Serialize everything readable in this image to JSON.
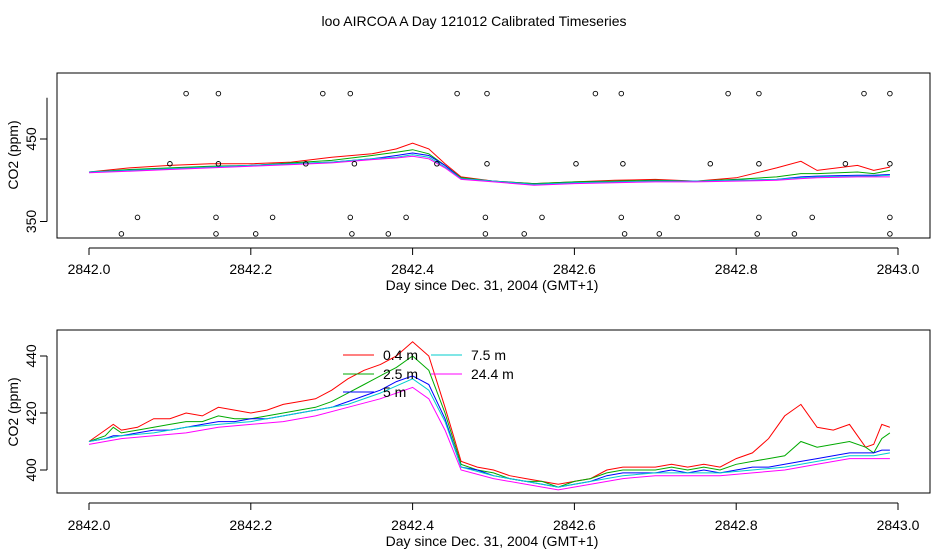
{
  "title": "loo AIRCOA A  Day 121012  Calibrated Timeseries",
  "chart_data": [
    {
      "type": "scatter",
      "xlabel": "Day since Dec. 31, 2004 (GMT+1)",
      "ylabel": "CO2 (ppm)",
      "xlim": [
        2842.0,
        2843.0
      ],
      "xticks": [
        "2842.0",
        "2842.2",
        "2842.4",
        "2842.6",
        "2842.8",
        "2843.0"
      ],
      "ylim": [
        330,
        530
      ],
      "yticks": [
        "350",
        "450"
      ],
      "grid": false,
      "series": [
        {
          "color": "#ff0000",
          "x": [
            2842.0,
            2842.05,
            2842.1,
            2842.15,
            2842.2,
            2842.25,
            2842.3,
            2842.35,
            2842.38,
            2842.4,
            2842.42,
            2842.44,
            2842.46,
            2842.5,
            2842.55,
            2842.6,
            2842.65,
            2842.7,
            2842.75,
            2842.8,
            2842.85,
            2842.88,
            2842.9,
            2842.95,
            2842.97,
            2842.99
          ],
          "y": [
            410,
            415,
            418,
            420,
            420,
            422,
            428,
            432,
            438,
            445,
            438,
            420,
            404,
            399,
            396,
            398,
            400,
            401,
            399,
            403,
            415,
            423,
            412,
            418,
            412,
            416
          ]
        },
        {
          "color": "#00aa00",
          "x": [
            2842.0,
            2842.05,
            2842.1,
            2842.15,
            2842.2,
            2842.25,
            2842.3,
            2842.35,
            2842.38,
            2842.4,
            2842.42,
            2842.44,
            2842.46,
            2842.5,
            2842.55,
            2842.6,
            2842.65,
            2842.7,
            2842.75,
            2842.8,
            2842.85,
            2842.88,
            2842.9,
            2842.95,
            2842.97,
            2842.99
          ],
          "y": [
            410,
            413,
            415,
            417,
            418,
            421,
            424,
            430,
            434,
            437,
            432,
            418,
            403,
            399,
            396,
            398,
            399,
            400,
            399,
            401,
            404,
            408,
            408,
            410,
            408,
            412
          ]
        },
        {
          "color": "#0000ff",
          "x": [
            2842.0,
            2842.05,
            2842.1,
            2842.15,
            2842.2,
            2842.25,
            2842.3,
            2842.35,
            2842.38,
            2842.4,
            2842.42,
            2842.44,
            2842.46,
            2842.5,
            2842.55,
            2842.6,
            2842.65,
            2842.7,
            2842.75,
            2842.8,
            2842.85,
            2842.88,
            2842.9,
            2842.95,
            2842.97,
            2842.99
          ],
          "y": [
            410,
            412,
            414,
            416,
            418,
            420,
            422,
            426,
            430,
            433,
            430,
            418,
            402,
            399,
            395,
            397,
            398,
            399,
            399,
            400,
            401,
            404,
            405,
            406,
            406,
            407
          ]
        },
        {
          "color": "#00cccc",
          "x": [
            2842.0,
            2842.05,
            2842.1,
            2842.15,
            2842.2,
            2842.25,
            2842.3,
            2842.35,
            2842.38,
            2842.4,
            2842.42,
            2842.44,
            2842.46,
            2842.5,
            2842.55,
            2842.6,
            2842.65,
            2842.7,
            2842.75,
            2842.8,
            2842.85,
            2842.88,
            2842.9,
            2842.95,
            2842.97,
            2842.99
          ],
          "y": [
            410,
            412,
            414,
            416,
            418,
            420,
            422,
            426,
            428,
            431,
            428,
            416,
            402,
            399,
            395,
            397,
            398,
            399,
            399,
            400,
            401,
            403,
            404,
            405,
            405,
            406
          ]
        },
        {
          "color": "#ff00ff",
          "x": [
            2842.0,
            2842.05,
            2842.1,
            2842.15,
            2842.2,
            2842.25,
            2842.3,
            2842.35,
            2842.38,
            2842.4,
            2842.42,
            2842.44,
            2842.46,
            2842.5,
            2842.55,
            2842.6,
            2842.65,
            2842.7,
            2842.75,
            2842.8,
            2842.85,
            2842.88,
            2842.9,
            2842.95,
            2842.97,
            2842.99
          ],
          "y": [
            409,
            411,
            413,
            415,
            417,
            419,
            421,
            425,
            427,
            429,
            426,
            415,
            401,
            398,
            394,
            396,
            397,
            398,
            398,
            399,
            400,
            402,
            403,
            404,
            404,
            404
          ]
        }
      ],
      "points": [
        {
          "x": 2842.04,
          "y": 335
        },
        {
          "x": 2842.06,
          "y": 355
        },
        {
          "x": 2842.1,
          "y": 420
        },
        {
          "x": 2842.12,
          "y": 505
        },
        {
          "x": 2842.157,
          "y": 335
        },
        {
          "x": 2842.157,
          "y": 355
        },
        {
          "x": 2842.16,
          "y": 420
        },
        {
          "x": 2842.16,
          "y": 505
        },
        {
          "x": 2842.206,
          "y": 335
        },
        {
          "x": 2842.227,
          "y": 355
        },
        {
          "x": 2842.268,
          "y": 420
        },
        {
          "x": 2842.289,
          "y": 505
        },
        {
          "x": 2842.323,
          "y": 355
        },
        {
          "x": 2842.323,
          "y": 505
        },
        {
          "x": 2842.325,
          "y": 335
        },
        {
          "x": 2842.328,
          "y": 420
        },
        {
          "x": 2842.37,
          "y": 335
        },
        {
          "x": 2842.392,
          "y": 355
        },
        {
          "x": 2842.43,
          "y": 420
        },
        {
          "x": 2842.455,
          "y": 505
        },
        {
          "x": 2842.49,
          "y": 335
        },
        {
          "x": 2842.49,
          "y": 355
        },
        {
          "x": 2842.492,
          "y": 420
        },
        {
          "x": 2842.492,
          "y": 505
        },
        {
          "x": 2842.538,
          "y": 335
        },
        {
          "x": 2842.56,
          "y": 355
        },
        {
          "x": 2842.602,
          "y": 420
        },
        {
          "x": 2842.626,
          "y": 505
        },
        {
          "x": 2842.658,
          "y": 355
        },
        {
          "x": 2842.658,
          "y": 505
        },
        {
          "x": 2842.66,
          "y": 420
        },
        {
          "x": 2842.662,
          "y": 335
        },
        {
          "x": 2842.705,
          "y": 335
        },
        {
          "x": 2842.727,
          "y": 355
        },
        {
          "x": 2842.768,
          "y": 420
        },
        {
          "x": 2842.79,
          "y": 505
        },
        {
          "x": 2842.826,
          "y": 335
        },
        {
          "x": 2842.828,
          "y": 355
        },
        {
          "x": 2842.828,
          "y": 420
        },
        {
          "x": 2842.828,
          "y": 505
        },
        {
          "x": 2842.872,
          "y": 335
        },
        {
          "x": 2842.894,
          "y": 355
        },
        {
          "x": 2842.935,
          "y": 420
        },
        {
          "x": 2842.958,
          "y": 505
        },
        {
          "x": 2842.99,
          "y": 335
        },
        {
          "x": 2842.99,
          "y": 355
        },
        {
          "x": 2842.99,
          "y": 420
        },
        {
          "x": 2842.99,
          "y": 505
        }
      ]
    },
    {
      "type": "line",
      "xlabel": "Day since Dec. 31, 2004 (GMT+1)",
      "ylabel": "CO2 (ppm)",
      "xlim": [
        2842.0,
        2843.0
      ],
      "xticks": [
        "2842.0",
        "2842.2",
        "2842.4",
        "2842.6",
        "2842.8",
        "2843.0"
      ],
      "ylim": [
        390,
        450
      ],
      "yticks": [
        "400",
        "420",
        "440"
      ],
      "grid": false,
      "legend": "top-center",
      "series": [
        {
          "name": "0.4 m",
          "color": "#ff0000",
          "x": [
            2842.0,
            2842.02,
            2842.03,
            2842.04,
            2842.06,
            2842.08,
            2842.1,
            2842.12,
            2842.14,
            2842.16,
            2842.18,
            2842.2,
            2842.22,
            2842.24,
            2842.26,
            2842.28,
            2842.3,
            2842.32,
            2842.34,
            2842.36,
            2842.38,
            2842.4,
            2842.42,
            2842.44,
            2842.46,
            2842.48,
            2842.5,
            2842.52,
            2842.54,
            2842.56,
            2842.58,
            2842.6,
            2842.62,
            2842.64,
            2842.66,
            2842.68,
            2842.7,
            2842.72,
            2842.74,
            2842.76,
            2842.78,
            2842.8,
            2842.82,
            2842.84,
            2842.86,
            2842.88,
            2842.9,
            2842.92,
            2842.94,
            2842.96,
            2842.97,
            2842.98,
            2842.99
          ],
          "y": [
            410,
            414,
            416,
            414,
            415,
            418,
            418,
            420,
            419,
            422,
            421,
            420,
            421,
            423,
            424,
            425,
            428,
            432,
            435,
            437,
            440,
            445,
            440,
            422,
            403,
            401,
            400,
            398,
            397,
            396,
            395,
            396,
            397,
            400,
            401,
            401,
            401,
            402,
            401,
            402,
            401,
            404,
            406,
            411,
            419,
            423,
            415,
            414,
            416,
            408,
            409,
            416,
            415
          ]
        },
        {
          "name": "2.5 m",
          "color": "#00aa00",
          "x": [
            2842.0,
            2842.02,
            2842.03,
            2842.04,
            2842.06,
            2842.08,
            2842.1,
            2842.12,
            2842.14,
            2842.16,
            2842.18,
            2842.2,
            2842.22,
            2842.24,
            2842.26,
            2842.28,
            2842.3,
            2842.32,
            2842.34,
            2842.36,
            2842.38,
            2842.4,
            2842.42,
            2842.44,
            2842.46,
            2842.48,
            2842.5,
            2842.52,
            2842.54,
            2842.56,
            2842.58,
            2842.6,
            2842.62,
            2842.64,
            2842.66,
            2842.68,
            2842.7,
            2842.72,
            2842.74,
            2842.76,
            2842.78,
            2842.8,
            2842.82,
            2842.84,
            2842.86,
            2842.88,
            2842.9,
            2842.92,
            2842.94,
            2842.96,
            2842.97,
            2842.98,
            2842.99
          ],
          "y": [
            410,
            412,
            415,
            413,
            414,
            415,
            416,
            417,
            417,
            419,
            418,
            418,
            419,
            420,
            421,
            422,
            424,
            427,
            430,
            433,
            436,
            440,
            435,
            420,
            402,
            400,
            399,
            397,
            396,
            396,
            394,
            396,
            397,
            399,
            400,
            400,
            400,
            401,
            400,
            401,
            400,
            402,
            403,
            404,
            405,
            410,
            408,
            409,
            410,
            408,
            406,
            411,
            413
          ]
        },
        {
          "name": "5 m",
          "color": "#0000ff",
          "x": [
            2842.0,
            2842.02,
            2842.03,
            2842.04,
            2842.06,
            2842.08,
            2842.1,
            2842.12,
            2842.14,
            2842.16,
            2842.18,
            2842.2,
            2842.22,
            2842.24,
            2842.26,
            2842.28,
            2842.3,
            2842.32,
            2842.34,
            2842.36,
            2842.38,
            2842.4,
            2842.42,
            2842.44,
            2842.46,
            2842.48,
            2842.5,
            2842.52,
            2842.54,
            2842.56,
            2842.58,
            2842.6,
            2842.62,
            2842.64,
            2842.66,
            2842.68,
            2842.7,
            2842.72,
            2842.74,
            2842.76,
            2842.78,
            2842.8,
            2842.82,
            2842.84,
            2842.86,
            2842.88,
            2842.9,
            2842.92,
            2842.94,
            2842.96,
            2842.97,
            2842.98,
            2842.99
          ],
          "y": [
            410,
            411,
            412,
            412,
            413,
            414,
            414,
            415,
            416,
            417,
            417,
            418,
            418,
            419,
            420,
            421,
            422,
            424,
            426,
            428,
            431,
            433,
            430,
            418,
            401,
            400,
            398,
            397,
            396,
            395,
            394,
            395,
            396,
            398,
            399,
            399,
            399,
            400,
            399,
            400,
            399,
            400,
            401,
            401,
            402,
            403,
            404,
            405,
            406,
            406,
            406,
            407,
            407
          ]
        },
        {
          "name": "7.5 m",
          "color": "#00cccc",
          "x": [
            2842.0,
            2842.04,
            2842.08,
            2842.12,
            2842.16,
            2842.2,
            2842.24,
            2842.28,
            2842.32,
            2842.36,
            2842.4,
            2842.42,
            2842.44,
            2842.46,
            2842.5,
            2842.54,
            2842.58,
            2842.62,
            2842.66,
            2842.7,
            2842.74,
            2842.78,
            2842.82,
            2842.86,
            2842.9,
            2842.94,
            2842.97,
            2842.99
          ],
          "y": [
            410,
            412,
            413,
            415,
            416,
            417,
            419,
            421,
            423,
            427,
            432,
            428,
            417,
            401,
            398,
            396,
            394,
            396,
            398,
            399,
            399,
            399,
            400,
            401,
            403,
            405,
            405,
            406
          ]
        },
        {
          "name": "24.4 m",
          "color": "#ff00ff",
          "x": [
            2842.0,
            2842.04,
            2842.08,
            2842.12,
            2842.16,
            2842.2,
            2842.24,
            2842.28,
            2842.32,
            2842.36,
            2842.4,
            2842.42,
            2842.44,
            2842.46,
            2842.5,
            2842.54,
            2842.58,
            2842.62,
            2842.66,
            2842.7,
            2842.74,
            2842.78,
            2842.82,
            2842.86,
            2842.9,
            2842.94,
            2842.97,
            2842.99
          ],
          "y": [
            409,
            411,
            412,
            413,
            415,
            416,
            417,
            419,
            422,
            425,
            429,
            425,
            414,
            400,
            397,
            395,
            393,
            395,
            397,
            398,
            398,
            398,
            399,
            400,
            402,
            404,
            404,
            404
          ]
        }
      ]
    }
  ]
}
